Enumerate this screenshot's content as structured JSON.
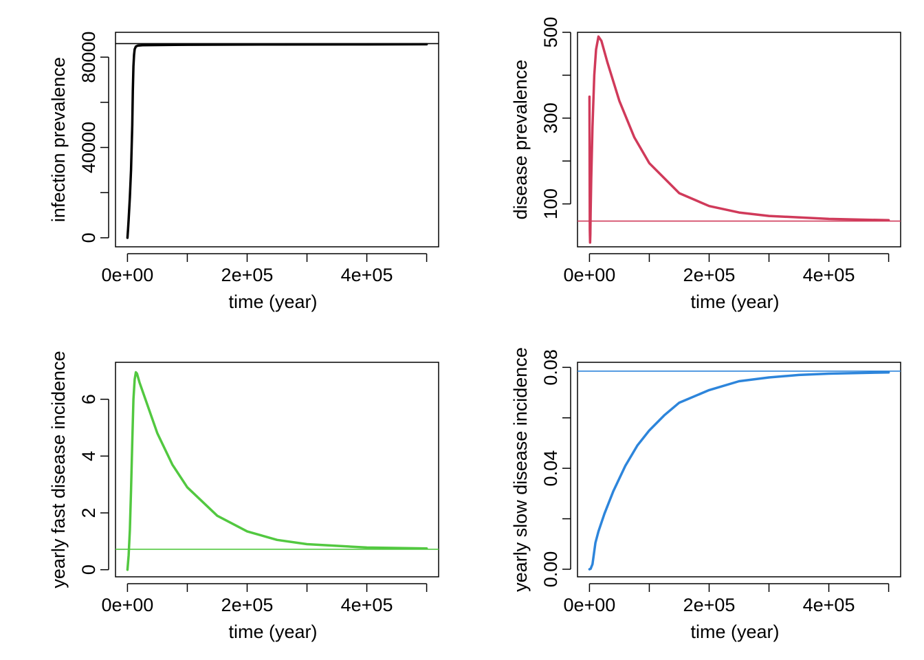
{
  "chart_data": [
    {
      "type": "line",
      "xlabel": "time (year)",
      "ylabel": "infection prevalence",
      "xlim": [
        -20000,
        520000
      ],
      "ylim": [
        -4000,
        91000
      ],
      "xticks": [
        0,
        100000,
        200000,
        300000,
        400000,
        500000
      ],
      "xtick_labels": [
        "0e+00",
        "",
        "2e+05",
        "",
        "4e+05",
        ""
      ],
      "yticks": [
        0,
        20000,
        40000,
        60000,
        80000
      ],
      "ytick_labels": [
        "0",
        "",
        "40000",
        "",
        "80000"
      ],
      "grid": false,
      "series": [
        {
          "color": "#000000",
          "x": [
            0,
            1000,
            2000,
            4000,
            6000,
            8000,
            9000,
            10000,
            11000,
            12000,
            14000,
            17000,
            25000,
            100000,
            250000,
            400000,
            500000
          ],
          "y": [
            0,
            4000,
            8000,
            18000,
            30000,
            50000,
            65000,
            76000,
            81000,
            83500,
            84700,
            85100,
            85300,
            85500,
            85600,
            85650,
            85700
          ]
        }
      ],
      "reference_line": {
        "y": 86000,
        "color": "#000000"
      }
    },
    {
      "type": "line",
      "xlabel": "time (year)",
      "ylabel": "disease prevalence",
      "xlim": [
        -20000,
        520000
      ],
      "ylim": [
        0,
        500
      ],
      "xticks": [
        0,
        100000,
        200000,
        300000,
        400000,
        500000
      ],
      "xtick_labels": [
        "0e+00",
        "",
        "2e+05",
        "",
        "4e+05",
        ""
      ],
      "yticks": [
        100,
        200,
        300,
        400,
        500
      ],
      "ytick_labels": [
        "100",
        "",
        "300",
        "",
        "500"
      ],
      "grid": false,
      "series": [
        {
          "color": "#d03a5a",
          "x": [
            0,
            300,
            600,
            1000,
            1500,
            2000,
            3000,
            5000,
            8000,
            11000,
            15000,
            20000,
            30000,
            50000,
            75000,
            100000,
            150000,
            200000,
            250000,
            300000,
            400000,
            500000
          ],
          "y": [
            350,
            150,
            40,
            10,
            30,
            80,
            160,
            280,
            400,
            460,
            490,
            480,
            430,
            340,
            255,
            195,
            125,
            95,
            80,
            72,
            65,
            62
          ]
        }
      ],
      "reference_line": {
        "y": 60,
        "color": "#d03a5a"
      }
    },
    {
      "type": "line",
      "xlabel": "time (year)",
      "ylabel": "yearly fast disease incidence",
      "xlim": [
        -20000,
        520000
      ],
      "ylim": [
        -0.25,
        7.3
      ],
      "xticks": [
        0,
        100000,
        200000,
        300000,
        400000,
        500000
      ],
      "xtick_labels": [
        "0e+00",
        "",
        "2e+05",
        "",
        "4e+05",
        ""
      ],
      "yticks": [
        0,
        2,
        4,
        6
      ],
      "ytick_labels": [
        "0",
        "2",
        "4",
        "6"
      ],
      "grid": false,
      "series": [
        {
          "color": "#52c840",
          "x": [
            0,
            2000,
            4000,
            6000,
            8000,
            10000,
            12000,
            14000,
            16000,
            20000,
            30000,
            50000,
            75000,
            100000,
            150000,
            200000,
            250000,
            300000,
            400000,
            500000
          ],
          "y": [
            0,
            0.5,
            1.4,
            2.8,
            4.5,
            6.0,
            6.7,
            6.95,
            6.9,
            6.6,
            6.0,
            4.8,
            3.7,
            2.9,
            1.9,
            1.35,
            1.05,
            0.9,
            0.78,
            0.75
          ]
        }
      ],
      "reference_line": {
        "y": 0.72,
        "color": "#52c840"
      }
    },
    {
      "type": "line",
      "xlabel": "time (year)",
      "ylabel": "yearly slow disease incidence",
      "xlim": [
        -20000,
        520000
      ],
      "ylim": [
        -0.003,
        0.082
      ],
      "xticks": [
        0,
        100000,
        200000,
        300000,
        400000,
        500000
      ],
      "xtick_labels": [
        "0e+00",
        "",
        "2e+05",
        "",
        "4e+05",
        ""
      ],
      "yticks": [
        0,
        0.02,
        0.04,
        0.06,
        0.08
      ],
      "ytick_labels": [
        "0.00",
        "",
        "0.04",
        "",
        "0.08"
      ],
      "grid": false,
      "series": [
        {
          "color": "#2d85db",
          "x": [
            0,
            2000,
            5000,
            10000,
            15000,
            25000,
            40000,
            60000,
            80000,
            100000,
            125000,
            150000,
            200000,
            250000,
            300000,
            350000,
            400000,
            500000
          ],
          "y": [
            0,
            0.0002,
            0.002,
            0.0105,
            0.015,
            0.022,
            0.031,
            0.041,
            0.049,
            0.055,
            0.061,
            0.066,
            0.071,
            0.0745,
            0.076,
            0.077,
            0.0775,
            0.078
          ]
        }
      ],
      "reference_line": {
        "y": 0.0785,
        "color": "#2d85db"
      }
    }
  ]
}
